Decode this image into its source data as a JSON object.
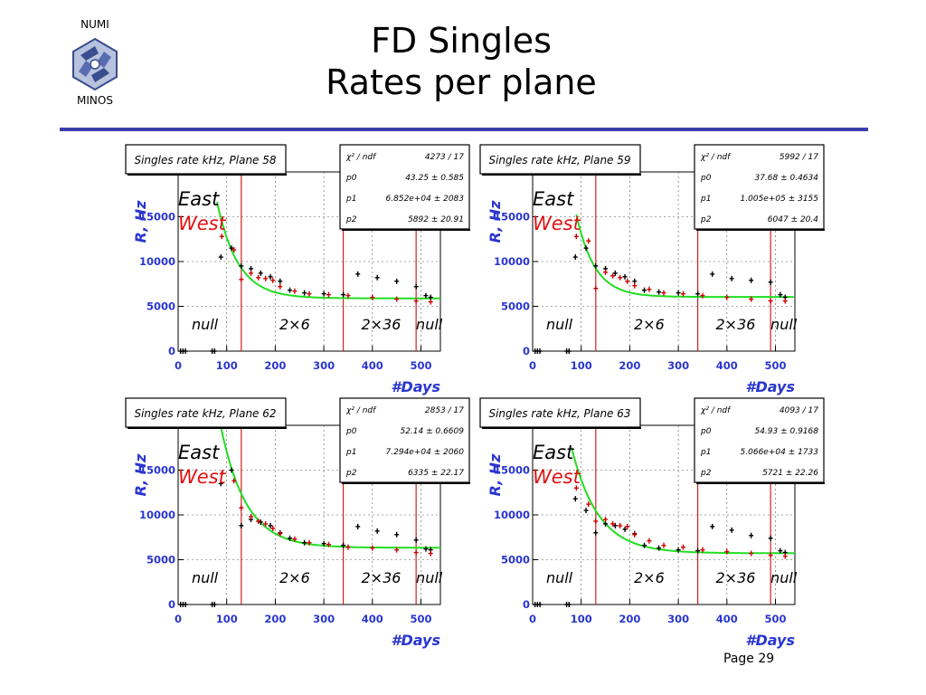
{
  "logo": {
    "top": "NUMI",
    "bottom": "MINOS"
  },
  "title": {
    "line1": "FD Singles",
    "line2": "Rates per plane"
  },
  "page_label": "Page 29",
  "chart_data": [
    {
      "type": "scatter",
      "title": "Singles rate kHz, Plane 58",
      "xlabel": "#Days",
      "ylabel": "R, Hz",
      "xlim": [
        0,
        540
      ],
      "ylim": [
        0,
        20000
      ],
      "xticks": [
        0,
        100,
        200,
        300,
        400,
        500
      ],
      "yticks": [
        0,
        5000,
        10000,
        15000
      ],
      "legend": [
        "East",
        "West"
      ],
      "regions": [
        "null",
        "2×6",
        "2×36",
        "null"
      ],
      "boundaries": [
        130,
        340,
        490
      ],
      "stats": [
        [
          "χ² / ndf",
          "4273 / 17"
        ],
        [
          "p0",
          "43.25 ± 0.585"
        ],
        [
          "p1",
          "6.852e+04 ± 2083"
        ],
        [
          "p2",
          "5892 ± 20.91"
        ]
      ],
      "fit": {
        "p0": 43.25,
        "p1": 68520,
        "p2": 5892,
        "x_start": 80,
        "x_end": 540
      },
      "series": [
        {
          "name": "East",
          "color": "#000000",
          "x": [
            5,
            10,
            15,
            70,
            75,
            88,
            110,
            130,
            150,
            170,
            190,
            210,
            230,
            260,
            300,
            340,
            370,
            410,
            450,
            490,
            510,
            520
          ],
          "y": [
            0,
            0,
            0,
            0,
            0,
            10500,
            11500,
            9500,
            9200,
            8700,
            8300,
            7800,
            6800,
            6500,
            6400,
            6300,
            8600,
            8200,
            7800,
            7200,
            6200,
            6000
          ]
        },
        {
          "name": "West",
          "color": "#cc0000",
          "x": [
            90,
            115,
            130,
            150,
            165,
            180,
            195,
            210,
            240,
            270,
            310,
            350,
            400,
            450,
            490,
            520
          ],
          "y": [
            12800,
            11300,
            8000,
            8700,
            8200,
            8100,
            7900,
            7200,
            6700,
            6400,
            6300,
            6200,
            6000,
            5800,
            5600,
            5500
          ]
        }
      ]
    },
    {
      "type": "scatter",
      "title": "Singles rate kHz, Plane 59",
      "xlabel": "#Days",
      "ylabel": "R, Hz",
      "xlim": [
        0,
        540
      ],
      "ylim": [
        0,
        20000
      ],
      "xticks": [
        0,
        100,
        200,
        300,
        400,
        500
      ],
      "yticks": [
        0,
        5000,
        10000,
        15000
      ],
      "legend": [
        "East",
        "West"
      ],
      "regions": [
        "null",
        "2×6",
        "2×36",
        "null"
      ],
      "boundaries": [
        130,
        340,
        490
      ],
      "stats": [
        [
          "χ² / ndf",
          "5992 / 17"
        ],
        [
          "p0",
          "37.68 ± 0.4634"
        ],
        [
          "p1",
          "1.005e+05 ± 3155"
        ],
        [
          "p2",
          "6047 ± 20.4"
        ]
      ],
      "fit": {
        "p0": 37.68,
        "p1": 100500,
        "p2": 6047,
        "x_start": 90,
        "x_end": 540
      },
      "series": [
        {
          "name": "East",
          "color": "#000000",
          "x": [
            5,
            10,
            15,
            70,
            75,
            88,
            110,
            130,
            150,
            170,
            190,
            210,
            230,
            260,
            300,
            340,
            370,
            410,
            450,
            490,
            510,
            520
          ],
          "y": [
            0,
            0,
            0,
            0,
            0,
            10500,
            11500,
            9500,
            9200,
            8700,
            8300,
            7800,
            6800,
            6600,
            6500,
            6400,
            8600,
            8100,
            7900,
            7700,
            6300,
            6000
          ]
        },
        {
          "name": "West",
          "color": "#cc0000",
          "x": [
            90,
            115,
            130,
            150,
            165,
            180,
            195,
            210,
            240,
            270,
            310,
            350,
            400,
            450,
            490,
            520
          ],
          "y": [
            12800,
            12300,
            7000,
            8800,
            8400,
            8200,
            7800,
            7300,
            6900,
            6500,
            6400,
            6200,
            6000,
            5800,
            5600,
            5600
          ]
        }
      ]
    },
    {
      "type": "scatter",
      "title": "Singles rate kHz, Plane 62",
      "xlabel": "#Days",
      "ylabel": "R, Hz",
      "xlim": [
        0,
        540
      ],
      "ylim": [
        0,
        20000
      ],
      "xticks": [
        0,
        100,
        200,
        300,
        400,
        500
      ],
      "yticks": [
        0,
        5000,
        10000,
        15000
      ],
      "legend": [
        "East",
        "West"
      ],
      "regions": [
        "null",
        "2×6",
        "2×36",
        "null"
      ],
      "boundaries": [
        130,
        340,
        490
      ],
      "stats": [
        [
          "χ² / ndf",
          "2853 / 17"
        ],
        [
          "p0",
          "52.14 ± 0.6609"
        ],
        [
          "p1",
          "7.294e+04 ± 2060"
        ],
        [
          "p2",
          "6335 ± 22.17"
        ]
      ],
      "fit": {
        "p0": 52.14,
        "p1": 72940,
        "p2": 6335,
        "x_start": 80,
        "x_end": 540
      },
      "series": [
        {
          "name": "East",
          "color": "#000000",
          "x": [
            5,
            10,
            15,
            70,
            75,
            88,
            110,
            130,
            150,
            170,
            190,
            210,
            230,
            260,
            300,
            340,
            370,
            410,
            450,
            490,
            510,
            520
          ],
          "y": [
            0,
            0,
            0,
            0,
            0,
            13500,
            15000,
            8800,
            9500,
            9200,
            8800,
            8000,
            7400,
            6900,
            6800,
            6600,
            8700,
            8200,
            7800,
            7200,
            6200,
            6100
          ]
        },
        {
          "name": "West",
          "color": "#cc0000",
          "x": [
            90,
            115,
            130,
            150,
            165,
            180,
            195,
            210,
            240,
            270,
            310,
            350,
            400,
            450,
            490,
            520
          ],
          "y": [
            14600,
            13800,
            10800,
            9800,
            9300,
            9000,
            8500,
            7900,
            7300,
            6900,
            6700,
            6400,
            6300,
            6100,
            5800,
            5700
          ]
        }
      ]
    },
    {
      "type": "scatter",
      "title": "Singles rate kHz, Plane 63",
      "xlabel": "#Days",
      "ylabel": "R, Hz",
      "xlim": [
        0,
        540
      ],
      "ylim": [
        0,
        20000
      ],
      "xticks": [
        0,
        100,
        200,
        300,
        400,
        500
      ],
      "yticks": [
        0,
        5000,
        10000,
        15000
      ],
      "legend": [
        "East",
        "West"
      ],
      "regions": [
        "null",
        "2×6",
        "2×36",
        "null"
      ],
      "boundaries": [
        130,
        340,
        490
      ],
      "stats": [
        [
          "χ² / ndf",
          "4093 / 17"
        ],
        [
          "p0",
          "54.93 ± 0.9168"
        ],
        [
          "p1",
          "5.066e+04 ± 1733"
        ],
        [
          "p2",
          "5721 ± 22.26"
        ]
      ],
      "fit": {
        "p0": 54.93,
        "p1": 50660,
        "p2": 5721,
        "x_start": 80,
        "x_end": 540
      },
      "series": [
        {
          "name": "East",
          "color": "#000000",
          "x": [
            5,
            10,
            15,
            70,
            75,
            88,
            110,
            130,
            150,
            170,
            190,
            210,
            230,
            260,
            300,
            340,
            370,
            410,
            450,
            490,
            510,
            520
          ],
          "y": [
            0,
            0,
            0,
            0,
            0,
            11800,
            10500,
            8000,
            9000,
            8800,
            8400,
            7900,
            6600,
            6300,
            6100,
            6000,
            8700,
            8300,
            7700,
            7400,
            6000,
            5800
          ]
        },
        {
          "name": "West",
          "color": "#cc0000",
          "x": [
            90,
            115,
            130,
            150,
            165,
            180,
            195,
            210,
            240,
            270,
            310,
            350,
            400,
            450,
            490,
            520
          ],
          "y": [
            13000,
            11200,
            9300,
            9500,
            9000,
            8800,
            8700,
            7800,
            7100,
            6600,
            6400,
            6100,
            5900,
            5700,
            5500,
            5400
          ]
        }
      ]
    }
  ]
}
